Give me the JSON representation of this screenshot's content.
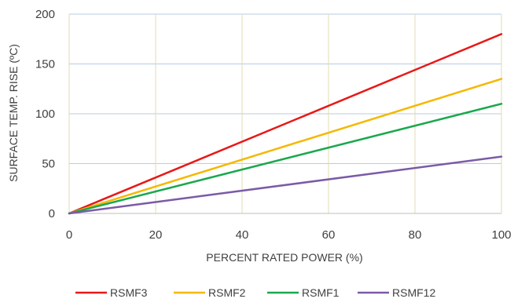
{
  "chart_data": {
    "type": "line",
    "title": "",
    "xlabel": "PERCENT RATED POWER (%)",
    "ylabel": "SURFACE TEMP. RISE (ºC)",
    "xlim": [
      0,
      100
    ],
    "ylim": [
      0,
      200
    ],
    "x_ticks": [
      0,
      20,
      40,
      60,
      80,
      100
    ],
    "y_ticks": [
      0,
      50,
      100,
      150,
      200
    ],
    "x_tick_labels": [
      "0",
      "20",
      "40",
      "60",
      "80",
      "100"
    ],
    "y_tick_labels": [
      "0",
      "50",
      "100",
      "150",
      "200"
    ],
    "grid": true,
    "legend_position": "bottom",
    "series": [
      {
        "name": "RSMF3",
        "color": "#e81818",
        "x": [
          0,
          100
        ],
        "y": [
          0,
          180
        ]
      },
      {
        "name": "RSMF2",
        "color": "#f5b800",
        "x": [
          0,
          100
        ],
        "y": [
          0,
          135
        ]
      },
      {
        "name": "RSMF1",
        "color": "#1aa84e",
        "x": [
          0,
          100
        ],
        "y": [
          0,
          110
        ]
      },
      {
        "name": "RSMF12",
        "color": "#7b5aa6",
        "x": [
          0,
          100
        ],
        "y": [
          0,
          57
        ]
      }
    ]
  }
}
